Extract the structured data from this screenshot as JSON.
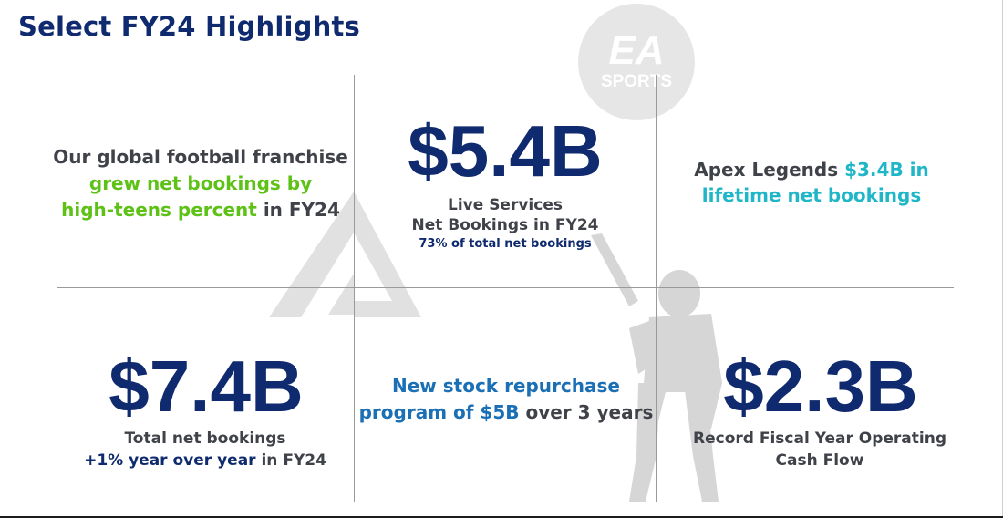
{
  "title": "Select FY24 Highlights",
  "logo": {
    "top": "EA",
    "bottom": "SPORTS"
  },
  "colors": {
    "navy": "#0f2a6e",
    "green": "#5dc215",
    "cyan": "#1fb6c8",
    "blue": "#1b6fb5",
    "gray": "#404249"
  },
  "cells": {
    "football": {
      "line1": "Our global football franchise",
      "line2": "grew net bookings by",
      "line3a": "high-teens percent",
      "line3b": " in FY24"
    },
    "live_services": {
      "value": "$5.4B",
      "line1": "Live Services",
      "line2": "Net Bookings in FY24",
      "line3": "73% of total net bookings"
    },
    "apex": {
      "prefix": "Apex Legends ",
      "highlight1": "$3.4B in",
      "highlight2": "lifetime net bookings"
    },
    "total": {
      "value": "$7.4B",
      "line1": "Total net bookings",
      "line2a": "+1% year over year",
      "line2b": " in FY24"
    },
    "repurchase": {
      "line1": "New stock repurchase",
      "line2a": "program of $5B",
      "line2b": " over 3 years"
    },
    "cash_flow": {
      "value": "$2.3B",
      "line1": "Record Fiscal Year Operating",
      "line2": "Cash Flow"
    }
  }
}
